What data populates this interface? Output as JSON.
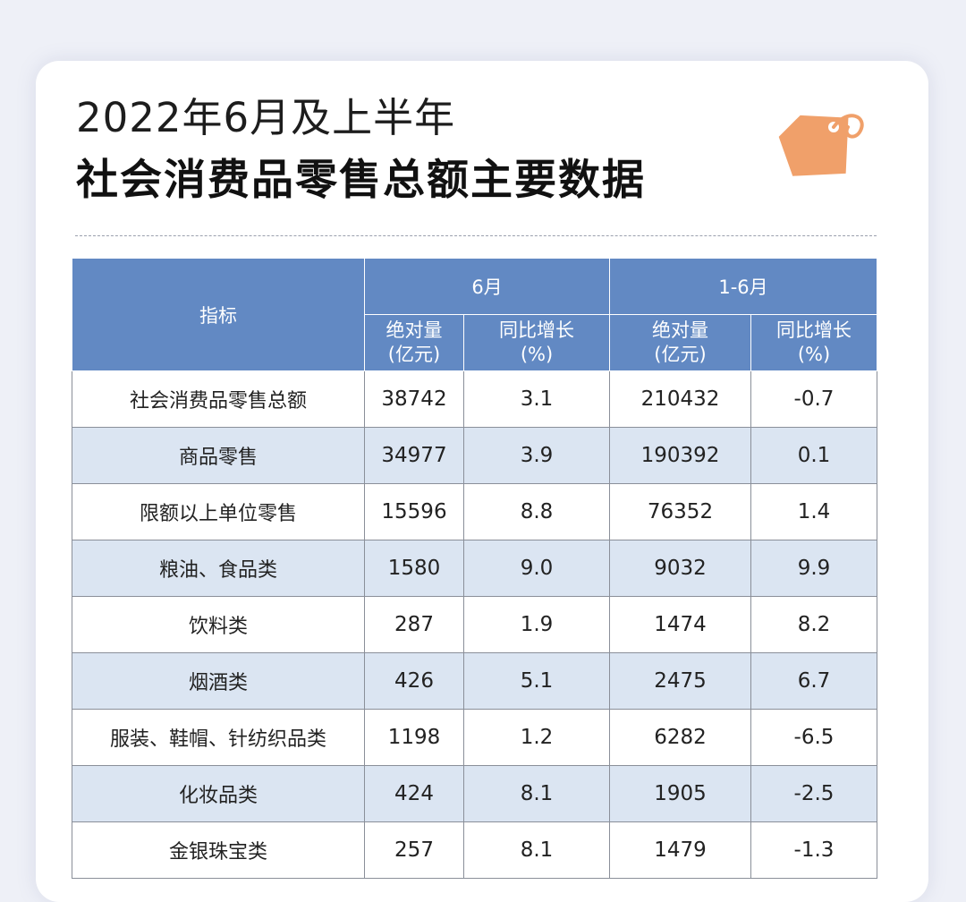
{
  "title_line1": "2022年6月及上半年",
  "title_line2": "社会消费品零售总额主要数据",
  "icon": "price-tag-icon",
  "colors": {
    "header_bg": "#6289c3",
    "alt_row_bg": "#dbe5f2",
    "tag": "#f0a06a"
  },
  "table": {
    "indicator_header": "指标",
    "group_headers": [
      "6月",
      "1-6月"
    ],
    "sub_headers": [
      {
        "line1": "绝对量",
        "line2": "(亿元)"
      },
      {
        "line1": "同比增长",
        "line2": "(%)"
      },
      {
        "line1": "绝对量",
        "line2": "(亿元)"
      },
      {
        "line1": "同比增长",
        "line2": "(%)"
      }
    ],
    "rows": [
      {
        "label": "社会消费品零售总额",
        "values": [
          "38742",
          "3.1",
          "210432",
          "-0.7"
        ]
      },
      {
        "label": "商品零售",
        "values": [
          "34977",
          "3.9",
          "190392",
          "0.1"
        ]
      },
      {
        "label": "限额以上单位零售",
        "values": [
          "15596",
          "8.8",
          "76352",
          "1.4"
        ]
      },
      {
        "label": "粮油、食品类",
        "values": [
          "1580",
          "9.0",
          "9032",
          "9.9"
        ]
      },
      {
        "label": "饮料类",
        "values": [
          "287",
          "1.9",
          "1474",
          "8.2"
        ]
      },
      {
        "label": "烟酒类",
        "values": [
          "426",
          "5.1",
          "2475",
          "6.7"
        ]
      },
      {
        "label": "服装、鞋帽、针纺织品类",
        "values": [
          "1198",
          "1.2",
          "6282",
          "-6.5"
        ]
      },
      {
        "label": "化妆品类",
        "values": [
          "424",
          "8.1",
          "1905",
          "-2.5"
        ]
      },
      {
        "label": "金银珠宝类",
        "values": [
          "257",
          "8.1",
          "1479",
          "-1.3"
        ]
      }
    ]
  }
}
